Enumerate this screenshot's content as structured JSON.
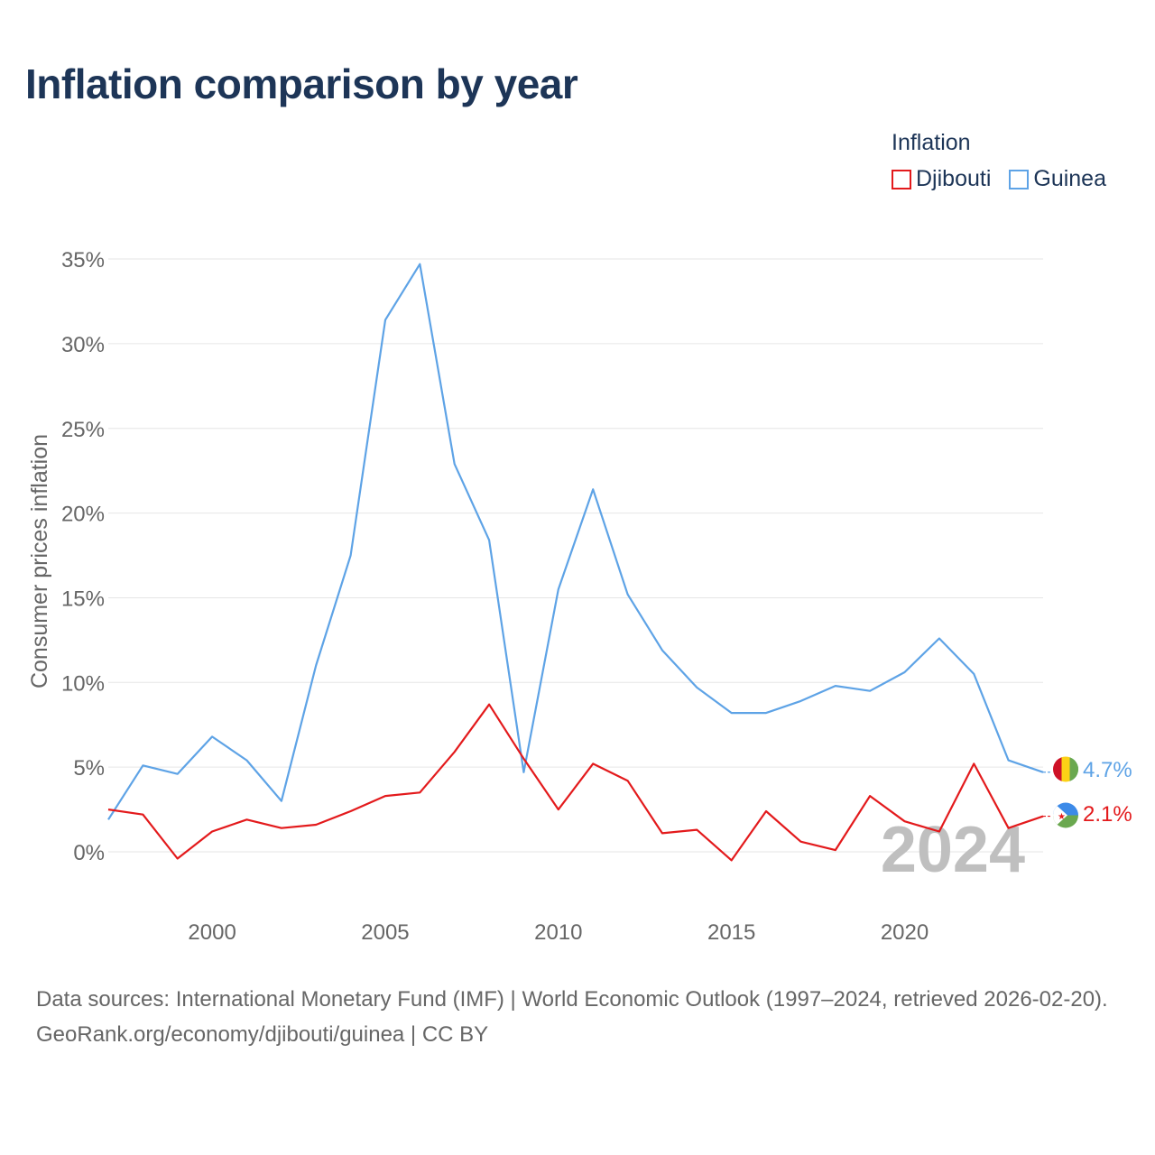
{
  "title": "Inflation comparison by year",
  "legend": {
    "title": "Inflation",
    "items": [
      {
        "label": "Djibouti",
        "color": "#e31a1c"
      },
      {
        "label": "Guinea",
        "color": "#5ea3e6"
      }
    ]
  },
  "year_watermark": "2024",
  "footer": {
    "sources": "Data sources: International Monetary Fund (IMF) | World Economic Outlook (1997–2024, retrieved 2026-02-20).",
    "credit": "GeoRank.org/economy/djibouti/guinea | CC BY"
  },
  "chart_data": {
    "type": "line",
    "title": "Inflation comparison by year",
    "xlabel": "",
    "ylabel": "Consumer prices inflation",
    "xlim": [
      1997,
      2024
    ],
    "ylim": [
      -2.5,
      36
    ],
    "x_ticks": [
      2000,
      2005,
      2010,
      2015,
      2020
    ],
    "y_ticks": [
      0,
      5,
      10,
      15,
      20,
      25,
      30,
      35
    ],
    "y_tick_labels": [
      "0%",
      "5%",
      "10%",
      "15%",
      "20%",
      "25%",
      "30%",
      "35%"
    ],
    "grid": true,
    "x": [
      1997,
      1998,
      1999,
      2000,
      2001,
      2002,
      2003,
      2004,
      2005,
      2006,
      2007,
      2008,
      2009,
      2010,
      2011,
      2012,
      2013,
      2014,
      2015,
      2016,
      2017,
      2018,
      2019,
      2020,
      2021,
      2022,
      2023,
      2024
    ],
    "series": [
      {
        "name": "Djibouti",
        "color": "#e31a1c",
        "end_label": "2.1%",
        "values": [
          2.5,
          2.2,
          -0.4,
          1.2,
          1.9,
          1.4,
          1.6,
          2.4,
          3.3,
          3.5,
          5.9,
          8.7,
          5.5,
          2.5,
          5.2,
          4.2,
          1.1,
          1.3,
          -0.5,
          2.4,
          0.6,
          0.1,
          3.3,
          1.8,
          1.2,
          5.2,
          1.4,
          2.1
        ]
      },
      {
        "name": "Guinea",
        "color": "#5ea3e6",
        "end_label": "4.7%",
        "values": [
          1.9,
          5.1,
          4.6,
          6.8,
          5.4,
          3.0,
          11.0,
          17.5,
          31.4,
          34.7,
          22.9,
          18.4,
          4.7,
          15.5,
          21.4,
          15.2,
          11.9,
          9.7,
          8.2,
          8.2,
          8.9,
          9.8,
          9.5,
          10.6,
          12.6,
          10.5,
          5.4,
          4.7
        ]
      }
    ]
  }
}
